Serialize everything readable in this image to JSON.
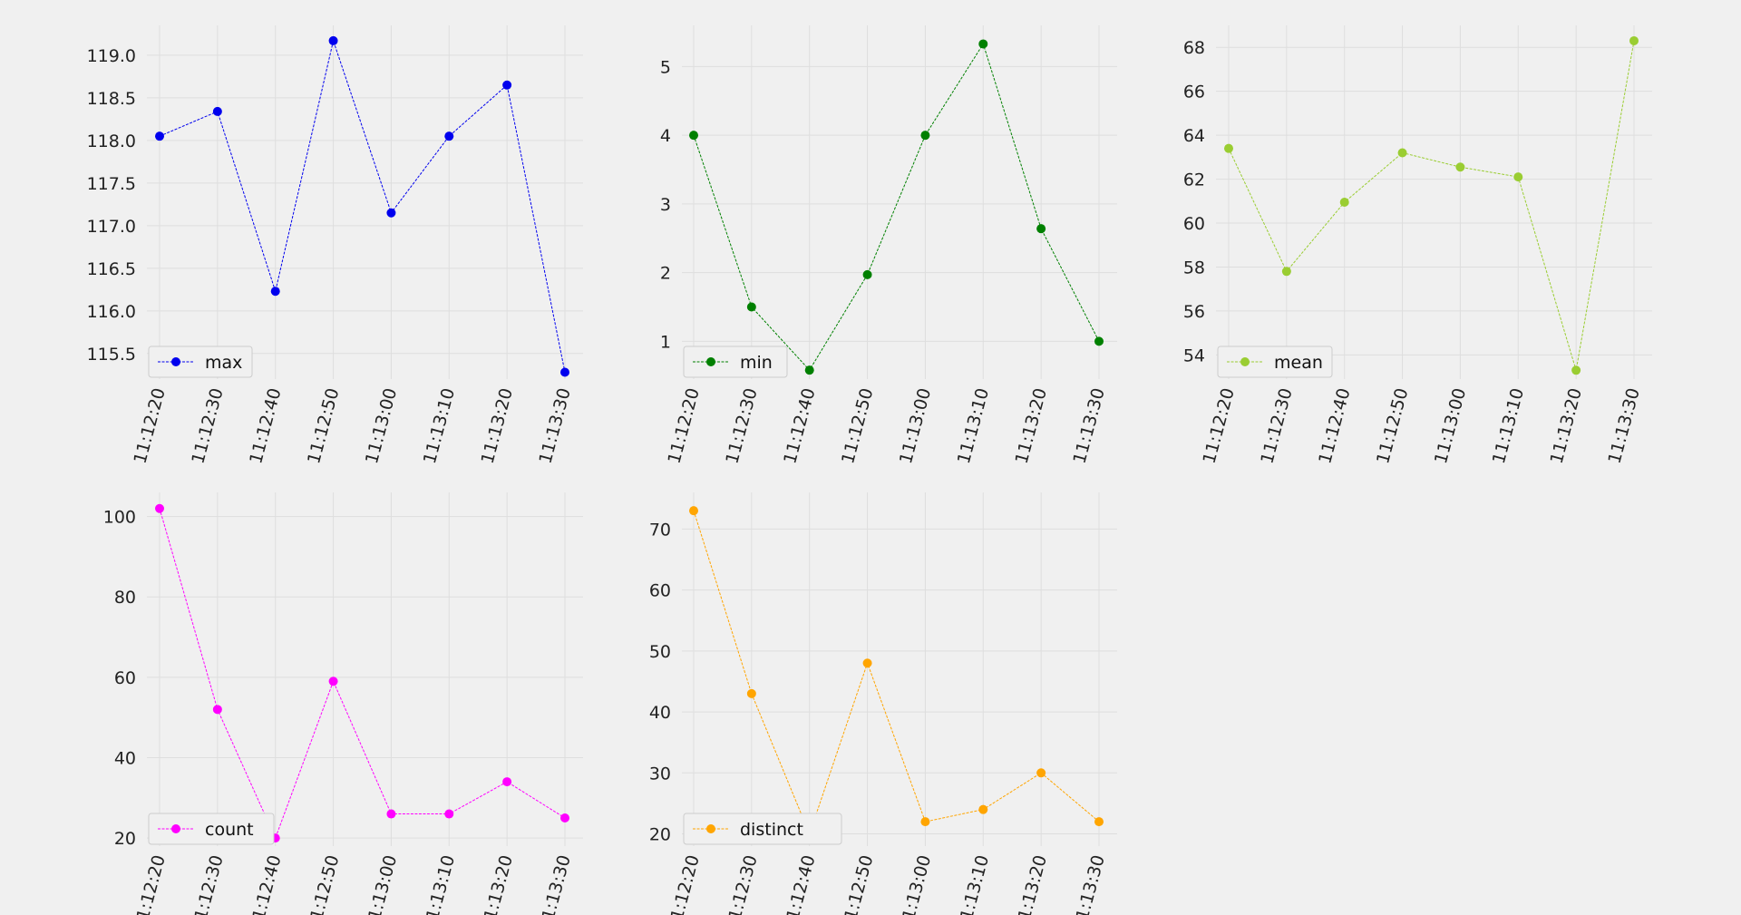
{
  "chart_data": [
    {
      "type": "line",
      "x": [
        "11:12:20",
        "11:12:30",
        "11:12:40",
        "11:12:50",
        "11:13:00",
        "11:13:10",
        "11:13:20",
        "11:13:30"
      ],
      "series": [
        {
          "name": "max",
          "color": "#0000ee",
          "values": [
            118.05,
            118.34,
            116.23,
            119.17,
            117.15,
            118.05,
            118.65,
            115.28
          ]
        }
      ],
      "yticks": [
        115.5,
        116.0,
        116.5,
        117.0,
        117.5,
        118.0,
        118.5,
        119.0
      ],
      "ylim": [
        115.2,
        119.35
      ],
      "legend": "lower-left",
      "grid": true
    },
    {
      "type": "line",
      "x": [
        "11:12:20",
        "11:12:30",
        "11:12:40",
        "11:12:50",
        "11:13:00",
        "11:13:10",
        "11:13:20",
        "11:13:30"
      ],
      "series": [
        {
          "name": "min",
          "color": "#008000",
          "values": [
            4.0,
            1.5,
            0.58,
            1.97,
            4.0,
            5.33,
            2.64,
            1.0
          ]
        }
      ],
      "yticks": [
        1,
        2,
        3,
        4,
        5
      ],
      "ylim": [
        0.45,
        5.6
      ],
      "legend": "lower-left",
      "grid": true
    },
    {
      "type": "line",
      "x": [
        "11:12:20",
        "11:12:30",
        "11:12:40",
        "11:12:50",
        "11:13:00",
        "11:13:10",
        "11:13:20",
        "11:13:30"
      ],
      "series": [
        {
          "name": "mean",
          "color": "#9acd32",
          "values": [
            63.4,
            57.8,
            60.95,
            63.2,
            62.55,
            62.1,
            53.3,
            68.3
          ]
        }
      ],
      "yticks": [
        54,
        56,
        58,
        60,
        62,
        64,
        66,
        68
      ],
      "ylim": [
        52.9,
        69.0
      ],
      "legend": "lower-left",
      "grid": true
    },
    {
      "type": "line",
      "x": [
        "11:12:20",
        "11:12:30",
        "11:12:40",
        "11:12:50",
        "11:13:00",
        "11:13:10",
        "11:13:20",
        "11:13:30"
      ],
      "series": [
        {
          "name": "count",
          "color": "#ff00ff",
          "values": [
            102,
            52,
            20,
            59,
            26,
            26,
            34,
            25
          ]
        }
      ],
      "yticks": [
        20,
        40,
        60,
        80,
        100
      ],
      "ylim": [
        18,
        106
      ],
      "legend": "lower-left",
      "grid": true
    },
    {
      "type": "line",
      "x": [
        "11:12:20",
        "11:12:30",
        "11:12:40",
        "11:12:50",
        "11:13:00",
        "11:13:10",
        "11:13:20",
        "11:13:30"
      ],
      "series": [
        {
          "name": "distinct",
          "color": "#ffa500",
          "values": [
            73,
            43,
            20,
            48,
            22,
            24,
            30,
            22
          ]
        }
      ],
      "yticks": [
        20,
        30,
        40,
        50,
        60,
        70
      ],
      "ylim": [
        18,
        76
      ],
      "legend": "lower-left",
      "grid": true
    }
  ]
}
